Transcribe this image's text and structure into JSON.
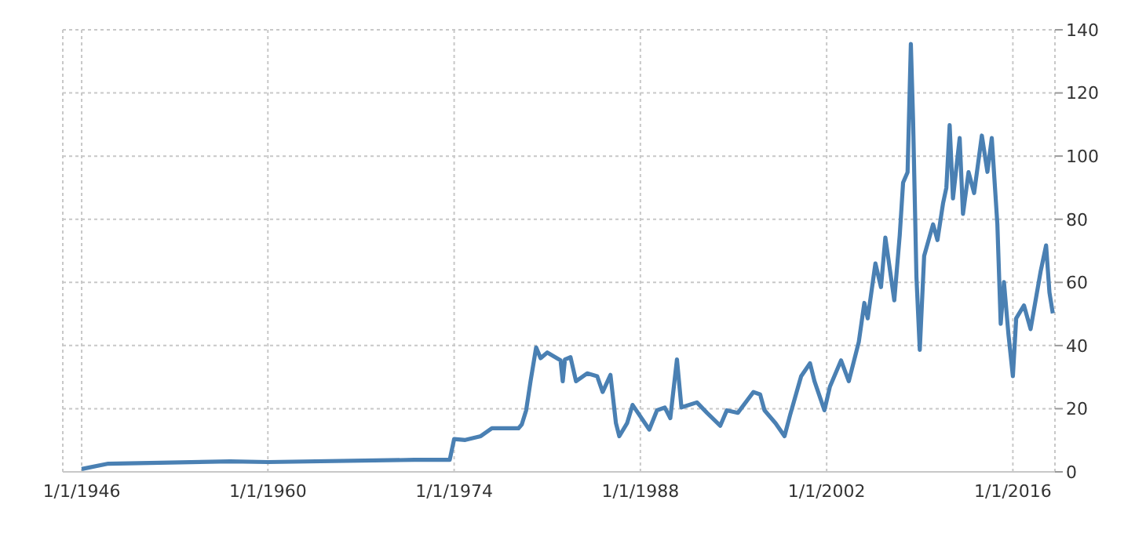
{
  "chart_data": {
    "type": "line",
    "x": [
      "1946-01",
      "1948-01",
      "1957-03",
      "1960-01",
      "1971-01",
      "1973-09",
      "1974-01",
      "1974-11",
      "1976-01",
      "1976-11",
      "1978-11",
      "1979-02",
      "1979-06",
      "1979-10",
      "1980-03",
      "1980-07",
      "1981-01",
      "1982-01",
      "1982-03",
      "1982-05",
      "1982-10",
      "1983-03",
      "1984-01",
      "1984-10",
      "1985-03",
      "1985-10",
      "1986-03",
      "1986-06",
      "1987-01",
      "1987-06",
      "1988-09",
      "1989-04",
      "1989-11",
      "1990-04",
      "1990-10",
      "1991-02",
      "1992-04",
      "1993-01",
      "1994-01",
      "1994-07",
      "1995-05",
      "1996-07",
      "1997-01",
      "1997-05",
      "1998-03",
      "1998-11",
      "1999-04",
      "2000-02",
      "2000-10",
      "2001-02",
      "2001-11",
      "2002-04",
      "2003-02",
      "2003-09",
      "2004-06",
      "2004-11",
      "2005-02",
      "2005-09",
      "2006-02",
      "2006-06",
      "2007-02",
      "2007-07",
      "2007-10",
      "2008-02",
      "2008-05",
      "2008-07",
      "2008-10",
      "2009-01",
      "2009-05",
      "2010-01",
      "2010-05",
      "2010-10",
      "2011-01",
      "2011-04",
      "2011-07",
      "2012-01",
      "2012-04",
      "2012-09",
      "2013-02",
      "2013-09",
      "2014-02",
      "2014-06",
      "2014-11",
      "2015-02",
      "2015-05",
      "2015-09",
      "2016-01",
      "2016-04",
      "2016-11",
      "2017-05",
      "2018-02",
      "2018-07",
      "2018-10",
      "2019-01"
    ],
    "series": [
      {
        "color": "#4a80b3",
        "values": [
          0.9,
          2.6,
          3.3,
          3.1,
          3.8,
          3.8,
          10.4,
          10.1,
          11.3,
          13.8,
          13.8,
          15,
          19.5,
          28.8,
          39.4,
          36,
          37.8,
          35.3,
          28.7,
          35.6,
          36.3,
          28.7,
          31.2,
          30.3,
          25.3,
          30.7,
          15.4,
          11.3,
          15.4,
          21.2,
          13.4,
          19.5,
          20.4,
          17,
          35.6,
          20.4,
          22,
          18.7,
          14.6,
          19.5,
          18.7,
          25.3,
          24.5,
          19.5,
          15.4,
          11.3,
          17.9,
          30.3,
          34.4,
          28.7,
          19.5,
          27,
          35.3,
          28.7,
          41.1,
          53.5,
          48.6,
          66,
          58.5,
          74.2,
          54.3,
          75,
          91.6,
          94.9,
          135.5,
          111.5,
          61.8,
          38.6,
          68.4,
          78.4,
          73.4,
          85,
          90,
          109.8,
          86.6,
          105.7,
          81.7,
          94.9,
          88.3,
          106.5,
          95,
          105.7,
          78.4,
          46.9,
          60.1,
          43.6,
          30.3,
          48.6,
          52.7,
          45.2,
          63.5,
          71.7,
          56.8,
          50.2
        ]
      }
    ],
    "xlim": [
      "1944-08",
      "2019-03"
    ],
    "xticks": [
      {
        "value": "1946-01-01",
        "label": "1/1/1946"
      },
      {
        "value": "1960-01-01",
        "label": "1/1/1960"
      },
      {
        "value": "1974-01-01",
        "label": "1/1/1974"
      },
      {
        "value": "1988-01-01",
        "label": "1/1/1988"
      },
      {
        "value": "2002-01-01",
        "label": "1/1/2002"
      },
      {
        "value": "2016-01-01",
        "label": "1/1/2016"
      }
    ],
    "ylim": [
      0,
      140
    ],
    "yticks": [
      0,
      20,
      40,
      60,
      80,
      100,
      120,
      140
    ],
    "grid": true,
    "marker": "none",
    "line_style": "solid"
  }
}
